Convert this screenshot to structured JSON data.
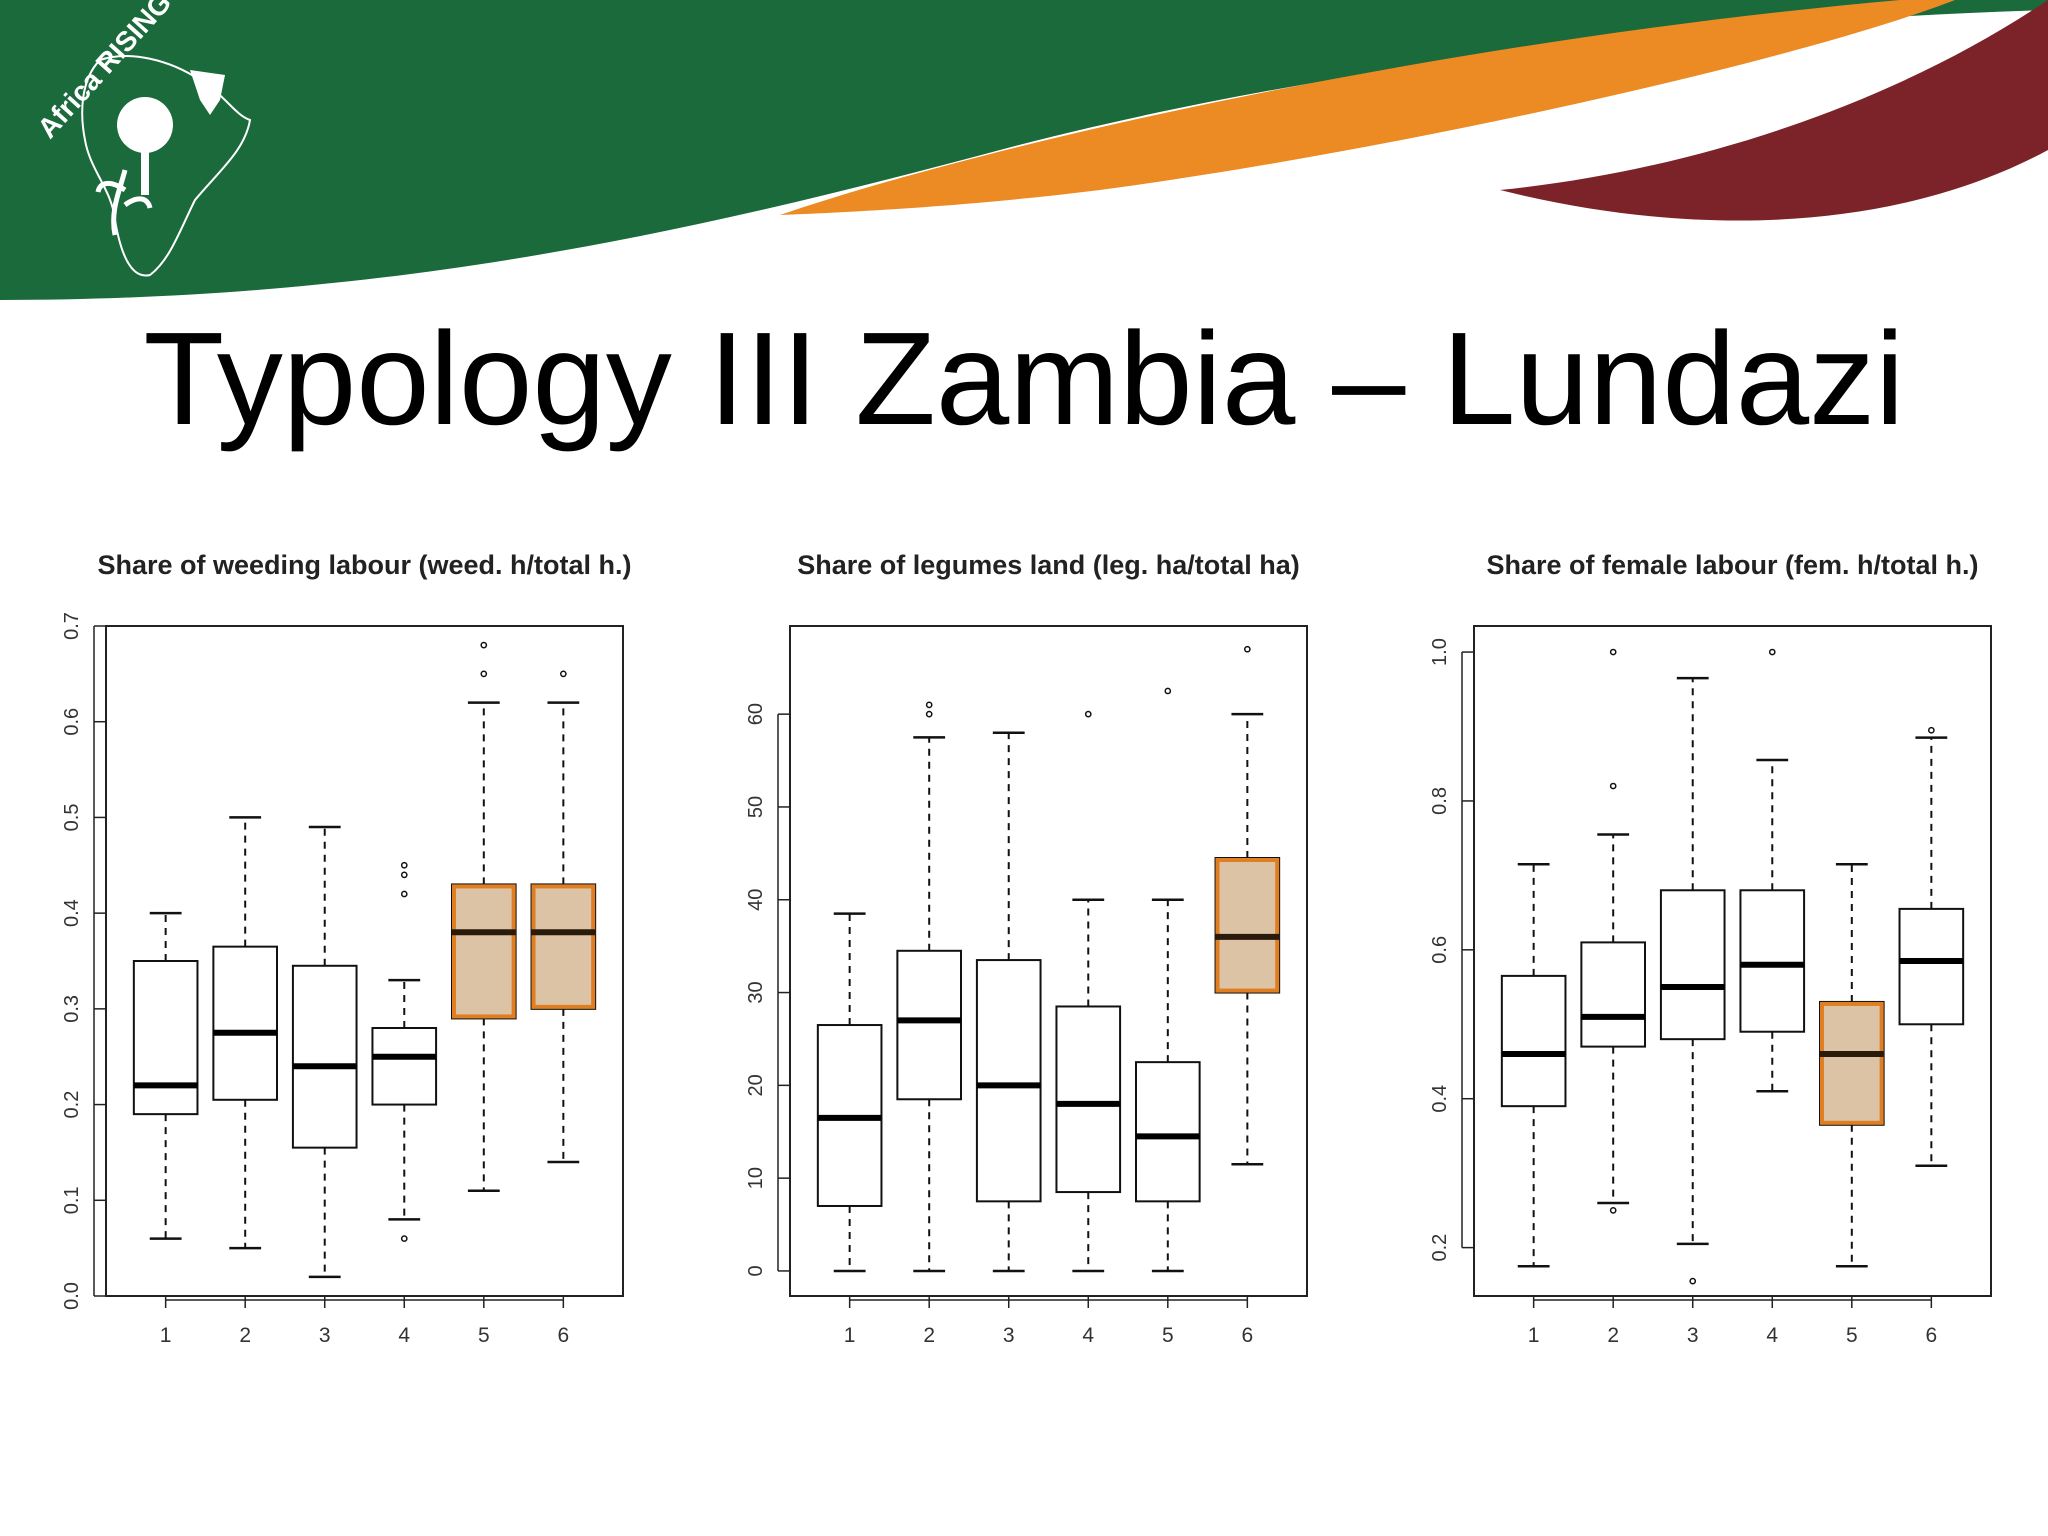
{
  "slide": {
    "title": "Typology III Zambia – Lundazi",
    "logo_text": "Africa RISING"
  },
  "colors": {
    "banner_green": "#1a6a3c",
    "banner_orange": "#ec8a24",
    "banner_maroon": "#7b2328",
    "highlight_fill": "#d9bd9c",
    "highlight_border": "#e07f22"
  },
  "chart_data": [
    {
      "type": "boxplot",
      "title": "Share of weeding labour (weed. h/total h.)",
      "categories": [
        "1",
        "2",
        "3",
        "4",
        "5",
        "6"
      ],
      "ylim": [
        0,
        0.7
      ],
      "yticks": [
        "0.0",
        "0.1",
        "0.2",
        "0.3",
        "0.4",
        "0.5",
        "0.6",
        "0.7"
      ],
      "ytick_values": [
        0,
        0.1,
        0.2,
        0.3,
        0.4,
        0.5,
        0.6,
        0.7
      ],
      "highlighted": [
        "5",
        "6"
      ],
      "boxes": [
        {
          "min": 0.06,
          "q1": 0.19,
          "median": 0.22,
          "q3": 0.35,
          "max": 0.4,
          "outliers": []
        },
        {
          "min": 0.05,
          "q1": 0.205,
          "median": 0.275,
          "q3": 0.365,
          "max": 0.5,
          "outliers": []
        },
        {
          "min": 0.02,
          "q1": 0.155,
          "median": 0.24,
          "q3": 0.345,
          "max": 0.49,
          "outliers": []
        },
        {
          "min": 0.08,
          "q1": 0.2,
          "median": 0.25,
          "q3": 0.28,
          "max": 0.33,
          "outliers": [
            0.06,
            0.42,
            0.44,
            0.45
          ]
        },
        {
          "min": 0.11,
          "q1": 0.29,
          "median": 0.38,
          "q3": 0.43,
          "max": 0.62,
          "outliers": [
            0.65,
            0.68
          ]
        },
        {
          "min": 0.14,
          "q1": 0.3,
          "median": 0.38,
          "q3": 0.43,
          "max": 0.62,
          "outliers": [
            0.65
          ]
        }
      ]
    },
    {
      "type": "boxplot",
      "title": "Share of legumes land (leg. ha/total ha)",
      "categories": [
        "1",
        "2",
        "3",
        "4",
        "5",
        "6"
      ],
      "ylim": [
        -2.7,
        69.5
      ],
      "yticks": [
        "0",
        "10",
        "20",
        "30",
        "40",
        "50",
        "60"
      ],
      "ytick_values": [
        0,
        10,
        20,
        30,
        40,
        50,
        60
      ],
      "highlighted": [
        "6"
      ],
      "boxes": [
        {
          "min": 0,
          "q1": 7,
          "median": 16.5,
          "q3": 26.5,
          "max": 38.5,
          "outliers": []
        },
        {
          "min": 0,
          "q1": 18.5,
          "median": 27,
          "q3": 34.5,
          "max": 57.5,
          "outliers": [
            60,
            61
          ]
        },
        {
          "min": 0,
          "q1": 7.5,
          "median": 20,
          "q3": 33.5,
          "max": 58,
          "outliers": []
        },
        {
          "min": 0,
          "q1": 8.5,
          "median": 18,
          "q3": 28.5,
          "max": 40,
          "outliers": [
            60
          ]
        },
        {
          "min": 0,
          "q1": 7.5,
          "median": 14.5,
          "q3": 22.5,
          "max": 40,
          "outliers": [
            62.5
          ]
        },
        {
          "min": 11.5,
          "q1": 30,
          "median": 36,
          "q3": 44.5,
          "max": 60,
          "outliers": [
            67
          ]
        }
      ]
    },
    {
      "type": "boxplot",
      "title": "Share of female labour (fem. h/total h.)",
      "categories": [
        "1",
        "2",
        "3",
        "4",
        "5",
        "6"
      ],
      "ylim": [
        0.135,
        1.035
      ],
      "yticks": [
        "0.2",
        "0.4",
        "0.6",
        "0.8",
        "1.0"
      ],
      "ytick_values": [
        0.2,
        0.4,
        0.6,
        0.8,
        1.0
      ],
      "highlighted": [
        "5"
      ],
      "boxes": [
        {
          "min": 0.175,
          "q1": 0.39,
          "median": 0.46,
          "q3": 0.565,
          "max": 0.715,
          "outliers": []
        },
        {
          "min": 0.26,
          "q1": 0.47,
          "median": 0.51,
          "q3": 0.61,
          "max": 0.755,
          "outliers": [
            0.25,
            0.82,
            1.0
          ]
        },
        {
          "min": 0.205,
          "q1": 0.48,
          "median": 0.55,
          "q3": 0.68,
          "max": 0.965,
          "outliers": [
            0.155
          ]
        },
        {
          "min": 0.41,
          "q1": 0.49,
          "median": 0.58,
          "q3": 0.68,
          "max": 0.855,
          "outliers": [
            1.0
          ]
        },
        {
          "min": 0.175,
          "q1": 0.365,
          "median": 0.46,
          "q3": 0.53,
          "max": 0.715,
          "outliers": []
        },
        {
          "min": 0.31,
          "q1": 0.5,
          "median": 0.585,
          "q3": 0.655,
          "max": 0.885,
          "outliers": [
            0.895
          ]
        }
      ]
    }
  ]
}
